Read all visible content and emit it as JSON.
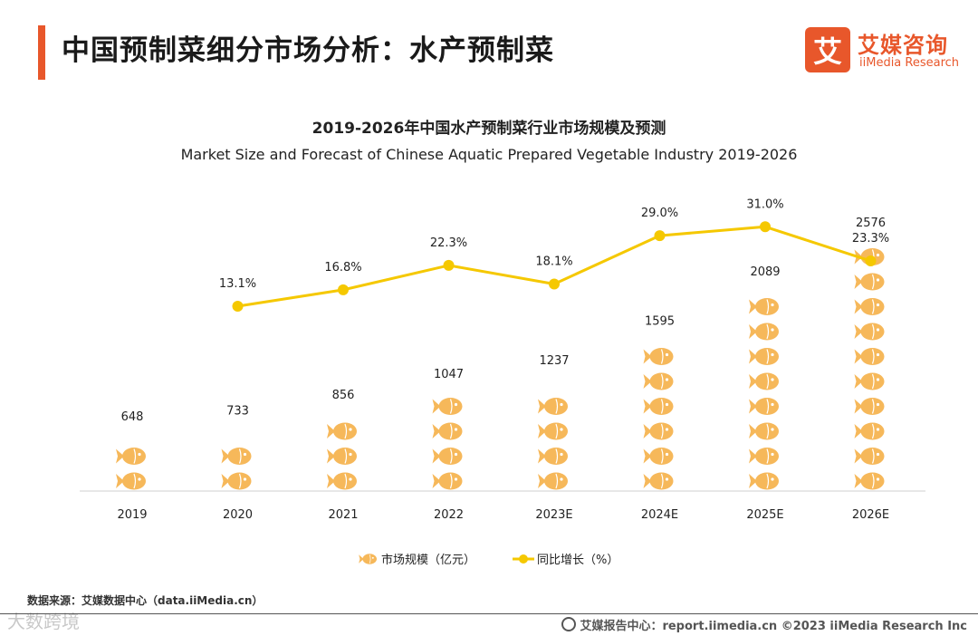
{
  "header": {
    "title": "中国预制菜细分市场分析：水产预制菜",
    "logo_cn": "艾媒咨询",
    "logo_en": "iiMedia Research",
    "logo_mark": "艾"
  },
  "colors": {
    "accent": "#e8572b",
    "fish": "#f6b85a",
    "line": "#f5c800"
  },
  "chart_data": {
    "type": "bar",
    "title": "2019-2026年中国水产预制菜行业市场规模及预测",
    "subtitle": "Market Size and Forecast of Chinese Aquatic Prepared Vegetable Industry 2019-2026",
    "categories": [
      "2019",
      "2020",
      "2021",
      "2022",
      "2023E",
      "2024E",
      "2025E",
      "2026E"
    ],
    "series": [
      {
        "name": "市场规模（亿元）",
        "type": "pictorial-bar",
        "values": [
          648,
          733,
          856,
          1047,
          1237,
          1595,
          2089,
          2576
        ]
      },
      {
        "name": "同比增长（%）",
        "type": "line",
        "values": [
          null,
          13.1,
          16.8,
          22.3,
          18.1,
          29.0,
          31.0,
          23.3
        ],
        "labels": [
          "",
          "13.1%",
          "16.8%",
          "22.3%",
          "18.1%",
          "29.0%",
          "31.0%",
          "23.3%"
        ]
      }
    ],
    "legend_position": "bottom"
  },
  "footer": {
    "source": "数据来源：艾媒数据中心（data.iiMedia.cn）",
    "copyright": "艾媒报告中心：report.iimedia.cn    ©2023  iiMedia Research  Inc",
    "watermark": "大数跨境"
  }
}
